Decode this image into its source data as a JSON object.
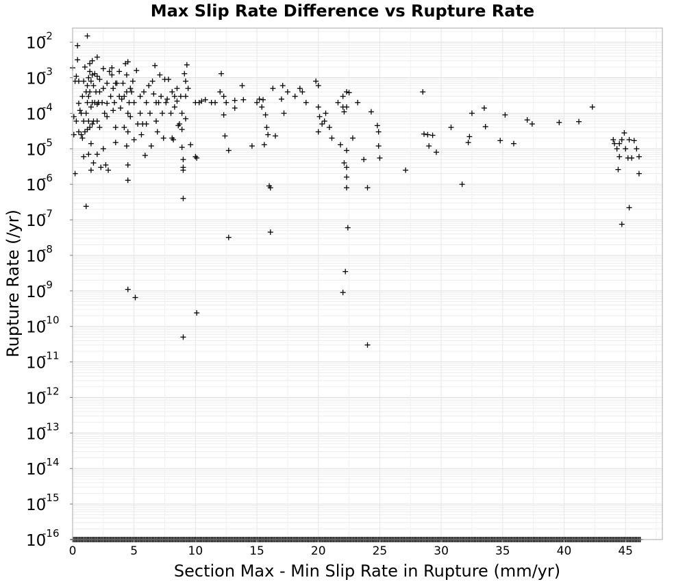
{
  "chart_data": {
    "type": "scatter",
    "title": "Max Slip Rate Difference vs Rupture Rate",
    "xlabel": "Section Max - Min Slip Rate in Rupture (mm/yr)",
    "ylabel": "Rupture Rate (/yr)",
    "xlim": [
      0,
      48
    ],
    "ylim": [
      1e-16,
      0.025
    ],
    "yscale": "log",
    "grid": true,
    "marker": "+",
    "x_ticks": [
      "0",
      "5",
      "10",
      "15",
      "20",
      "25",
      "30",
      "35",
      "40",
      "45"
    ],
    "y_ticks": [
      {
        "base": "10",
        "exp": "-2"
      },
      {
        "base": "10",
        "exp": "-3"
      },
      {
        "base": "10",
        "exp": "-4"
      },
      {
        "base": "10",
        "exp": "-5"
      },
      {
        "base": "10",
        "exp": "-6"
      },
      {
        "base": "10",
        "exp": "-7"
      },
      {
        "base": "10",
        "exp": "-8"
      },
      {
        "base": "10",
        "exp": "-9"
      },
      {
        "base": "10",
        "exp": "-10"
      },
      {
        "base": "10",
        "exp": "-11"
      },
      {
        "base": "10",
        "exp": "-12"
      },
      {
        "base": "10",
        "exp": "-13"
      },
      {
        "base": "10",
        "exp": "-14"
      },
      {
        "base": "10",
        "exp": "-15"
      },
      {
        "base": "10",
        "exp": "-16"
      }
    ],
    "floor_value": 1e-16,
    "floor_range": [
      0,
      46.2
    ],
    "series": [
      {
        "points": [
          [
            0.0,
            0.0019
          ],
          [
            0.1,
            8e-05
          ],
          [
            0.1,
            2.5e-05
          ],
          [
            0.2,
            0.0008
          ],
          [
            0.2,
            2e-06
          ],
          [
            0.3,
            0.0011
          ],
          [
            0.3,
            6e-05
          ],
          [
            0.4,
            0.008
          ],
          [
            0.4,
            0.0032
          ],
          [
            0.5,
            0.0008
          ],
          [
            0.5,
            0.00019
          ],
          [
            0.5,
            3e-05
          ],
          [
            0.6,
            0.00012
          ],
          [
            0.7,
            0.0001
          ],
          [
            0.7,
            2.5e-05
          ],
          [
            0.8,
            0.0003
          ],
          [
            0.8,
            2e-05
          ],
          [
            0.9,
            0.0008
          ],
          [
            0.9,
            6e-05
          ],
          [
            0.9,
            6e-06
          ],
          [
            1.0,
            0.002
          ],
          [
            1.0,
            3e-05
          ],
          [
            1.1,
            0.0004
          ],
          [
            1.1,
            0.0001
          ],
          [
            1.1,
            2.4e-07
          ],
          [
            1.2,
            0.015
          ],
          [
            1.2,
            0.0006
          ],
          [
            1.2,
            0.0002
          ],
          [
            1.2,
            3.5e-05
          ],
          [
            1.3,
            0.001
          ],
          [
            1.3,
            0.0003
          ],
          [
            1.3,
            6e-05
          ],
          [
            1.3,
            7e-06
          ],
          [
            1.4,
            0.0025
          ],
          [
            1.4,
            0.0015
          ],
          [
            1.4,
            0.0004
          ],
          [
            1.4,
            4e-05
          ],
          [
            1.5,
            0.0008
          ],
          [
            1.5,
            0.00015
          ],
          [
            1.5,
            2.5e-06
          ],
          [
            1.5,
            1.4e-05
          ],
          [
            1.6,
            0.003
          ],
          [
            1.6,
            0.0012
          ],
          [
            1.6,
            0.0002
          ],
          [
            1.6,
            5e-05
          ],
          [
            1.7,
            0.0006
          ],
          [
            1.7,
            6e-05
          ],
          [
            1.7,
            4e-06
          ],
          [
            1.8,
            0.0013
          ],
          [
            1.8,
            0.0002
          ],
          [
            1.9,
            0.0004
          ],
          [
            2.0,
            0.0038
          ],
          [
            2.0,
            0.0011
          ],
          [
            2.0,
            0.00018
          ],
          [
            2.0,
            6e-05
          ],
          [
            2.0,
            7e-06
          ],
          [
            2.1,
            0.0002
          ],
          [
            2.2,
            0.0009
          ],
          [
            2.2,
            0.0004
          ],
          [
            2.2,
            4e-05
          ],
          [
            2.3,
            3e-06
          ],
          [
            2.4,
            0.0002
          ],
          [
            2.5,
            0.0018
          ],
          [
            2.5,
            0.0005
          ],
          [
            2.5,
            1e-05
          ],
          [
            2.6,
            0.0001
          ],
          [
            2.7,
            3.5e-06
          ],
          [
            2.8,
            0.0007
          ],
          [
            2.8,
            0.00019
          ],
          [
            2.8,
            8e-05
          ],
          [
            2.9,
            2.5e-06
          ],
          [
            3.0,
            0.0015
          ],
          [
            3.1,
            0.0003
          ],
          [
            3.2,
            0.0019
          ],
          [
            3.2,
            0.0012
          ],
          [
            3.3,
            0.0005
          ],
          [
            3.3,
            0.00012
          ],
          [
            3.4,
            0.0002
          ],
          [
            3.5,
            0.0007
          ],
          [
            3.5,
            4e-05
          ],
          [
            3.5,
            1.5e-05
          ],
          [
            3.6,
            0.0007
          ],
          [
            3.8,
            0.0003
          ],
          [
            3.8,
            0.0015
          ],
          [
            3.9,
            0.00014
          ],
          [
            4.0,
            0.00025
          ],
          [
            4.1,
            0.0007
          ],
          [
            4.2,
            0.0003
          ],
          [
            4.2,
            4e-05
          ],
          [
            4.3,
            0.0025
          ],
          [
            4.4,
            0.0012
          ],
          [
            4.4,
            0.0004
          ],
          [
            4.4,
            1.2e-05
          ],
          [
            4.5,
            0.0028
          ],
          [
            4.5,
            0.0001
          ],
          [
            4.5,
            3e-05
          ],
          [
            4.5,
            3.5e-06
          ],
          [
            4.5,
            1.3e-06
          ],
          [
            4.5,
            1.1e-09
          ],
          [
            4.6,
            0.0002
          ],
          [
            4.7,
            0.0005
          ],
          [
            4.7,
            8e-05
          ],
          [
            4.8,
            0.0004
          ],
          [
            4.9,
            0.0008
          ],
          [
            5.0,
            0.0002
          ],
          [
            5.0,
            1.8e-05
          ],
          [
            5.1,
            6.5e-10
          ],
          [
            5.2,
            0.0016
          ],
          [
            5.3,
            5e-05
          ],
          [
            5.5,
            0.0003
          ],
          [
            5.5,
            0.0001
          ],
          [
            5.6,
            2.5e-05
          ],
          [
            5.7,
            5e-05
          ],
          [
            5.8,
            0.0004
          ],
          [
            5.9,
            6.5e-06
          ],
          [
            6.0,
            0.0002
          ],
          [
            6.0,
            5e-05
          ],
          [
            6.2,
            0.0006
          ],
          [
            6.3,
            0.0001
          ],
          [
            6.4,
            1.2e-05
          ],
          [
            6.5,
            0.0008
          ],
          [
            6.6,
            0.00035
          ],
          [
            6.7,
            0.0022
          ],
          [
            6.8,
            0.0002
          ],
          [
            6.8,
            6e-05
          ],
          [
            6.9,
            3e-05
          ],
          [
            7.0,
            0.0002
          ],
          [
            7.1,
            0.0012
          ],
          [
            7.2,
            0.0003
          ],
          [
            7.3,
            0.0001
          ],
          [
            7.4,
            2e-05
          ],
          [
            7.5,
            0.0009
          ],
          [
            7.6,
            0.0002
          ],
          [
            7.7,
            0.00025
          ],
          [
            7.8,
            0.0009
          ],
          [
            8.0,
            0.0001
          ],
          [
            8.1,
            0.0004
          ],
          [
            8.1,
            2e-05
          ],
          [
            8.2,
            1.8e-05
          ],
          [
            8.3,
            0.0003
          ],
          [
            8.3,
            0.00015
          ],
          [
            8.5,
            0.0005
          ],
          [
            8.5,
            0.00022
          ],
          [
            8.6,
            4.5e-05
          ],
          [
            8.7,
            5e-05
          ],
          [
            8.8,
            0.0003
          ],
          [
            8.9,
            0.0001
          ],
          [
            8.9,
            3.5e-05
          ],
          [
            8.9,
            1.1e-05
          ],
          [
            9.0,
            5e-06
          ],
          [
            9.0,
            3e-06
          ],
          [
            9.0,
            2.5e-06
          ],
          [
            9.0,
            4e-07
          ],
          [
            9.0,
            5e-11
          ],
          [
            9.1,
            0.0013
          ],
          [
            9.2,
            0.0008
          ],
          [
            9.2,
            0.0003
          ],
          [
            9.2,
            7e-05
          ],
          [
            9.3,
            0.0023
          ],
          [
            9.4,
            0.0005
          ],
          [
            9.6,
            1.3e-05
          ],
          [
            10.0,
            0.0002
          ],
          [
            10.0,
            6e-06
          ],
          [
            10.1,
            5.5e-06
          ],
          [
            10.1,
            2.4e-10
          ],
          [
            10.3,
            0.0002
          ],
          [
            10.5,
            0.00022
          ],
          [
            10.8,
            0.00024
          ],
          [
            11.3,
            0.0002
          ],
          [
            11.6,
            0.0002
          ],
          [
            12.0,
            0.0004
          ],
          [
            12.1,
            0.0013
          ],
          [
            12.3,
            0.0003
          ],
          [
            12.3,
            9e-05
          ],
          [
            12.4,
            2.3e-05
          ],
          [
            12.5,
            0.0002
          ],
          [
            12.7,
            9e-06
          ],
          [
            12.7,
            3.2e-08
          ],
          [
            13.2,
            0.00023
          ],
          [
            13.2,
            0.00014
          ],
          [
            13.8,
            0.0006
          ],
          [
            13.9,
            0.00024
          ],
          [
            14.6,
            1.2e-05
          ],
          [
            15.0,
            0.0002
          ],
          [
            15.2,
            0.00025
          ],
          [
            15.4,
            0.00015
          ],
          [
            15.5,
            0.00024
          ],
          [
            15.6,
            1.3e-05
          ],
          [
            15.7,
            9e-05
          ],
          [
            15.8,
            4e-05
          ],
          [
            15.9,
            2.5e-05
          ],
          [
            16.0,
            9e-07
          ],
          [
            16.1,
            8e-07
          ],
          [
            16.1,
            4.5e-08
          ],
          [
            16.3,
            0.0005
          ],
          [
            16.5,
            2.3e-05
          ],
          [
            17.0,
            0.00025
          ],
          [
            17.1,
            0.0006
          ],
          [
            17.2,
            0.0001
          ],
          [
            17.5,
            0.0004
          ],
          [
            18.1,
            0.0003
          ],
          [
            18.5,
            0.0005
          ],
          [
            18.7,
            0.0004
          ],
          [
            19.0,
            0.0002
          ],
          [
            19.8,
            0.0008
          ],
          [
            20.0,
            0.0006
          ],
          [
            20.0,
            0.00015
          ],
          [
            20.0,
            3e-05
          ],
          [
            20.1,
            8e-05
          ],
          [
            20.3,
            5e-05
          ],
          [
            20.5,
            6e-05
          ],
          [
            20.6,
            0.0001
          ],
          [
            20.9,
            4e-05
          ],
          [
            21.1,
            2e-05
          ],
          [
            21.6,
            0.0002
          ],
          [
            21.8,
            1.3e-05
          ],
          [
            22.0,
            0.0003
          ],
          [
            22.0,
            0.00015
          ],
          [
            22.0,
            9e-10
          ],
          [
            22.1,
            0.00011
          ],
          [
            22.1,
            4e-06
          ],
          [
            22.2,
            3.5e-09
          ],
          [
            22.3,
            0.0004
          ],
          [
            22.3,
            0.00015
          ],
          [
            22.3,
            9e-06
          ],
          [
            22.3,
            3e-06
          ],
          [
            22.3,
            1.6e-06
          ],
          [
            22.3,
            8e-07
          ],
          [
            22.4,
            6e-08
          ],
          [
            22.5,
            0.00038
          ],
          [
            22.8,
            2e-05
          ],
          [
            23.2,
            0.0002
          ],
          [
            23.7,
            5e-06
          ],
          [
            24.0,
            8e-07
          ],
          [
            24.0,
            3e-11
          ],
          [
            24.3,
            0.00011
          ],
          [
            24.8,
            4.5e-05
          ],
          [
            24.9,
            3e-05
          ],
          [
            24.9,
            1.2e-05
          ],
          [
            25.0,
            5.5e-06
          ],
          [
            27.1,
            2.5e-06
          ],
          [
            28.5,
            0.0004
          ],
          [
            28.6,
            2.6e-05
          ],
          [
            28.9,
            2.5e-05
          ],
          [
            29.0,
            1.2e-05
          ],
          [
            29.3,
            2.4e-05
          ],
          [
            29.6,
            8e-06
          ],
          [
            30.8,
            4e-05
          ],
          [
            31.7,
            1e-06
          ],
          [
            32.2,
            1.5e-05
          ],
          [
            32.3,
            2.2e-05
          ],
          [
            32.5,
            0.0001
          ],
          [
            33.5,
            0.00014
          ],
          [
            33.6,
            4.2e-05
          ],
          [
            34.8,
            1.7e-05
          ],
          [
            35.2,
            9e-05
          ],
          [
            35.9,
            1.4e-05
          ],
          [
            37.0,
            6.5e-05
          ],
          [
            37.4,
            5e-05
          ],
          [
            39.6,
            5.5e-05
          ],
          [
            41.2,
            5.8e-05
          ],
          [
            42.3,
            0.00015
          ],
          [
            44.0,
            1.8e-05
          ],
          [
            44.1,
            1.4e-05
          ],
          [
            44.3,
            1e-05
          ],
          [
            44.4,
            2.6e-06
          ],
          [
            44.5,
            6e-06
          ],
          [
            44.5,
            1.4e-05
          ],
          [
            44.7,
            1.8e-05
          ],
          [
            44.7,
            7.5e-08
          ],
          [
            44.9,
            2.8e-05
          ],
          [
            45.0,
            1e-05
          ],
          [
            45.2,
            5.5e-06
          ],
          [
            45.3,
            1.8e-05
          ],
          [
            45.3,
            2.2e-07
          ],
          [
            45.5,
            5.5e-06
          ],
          [
            45.7,
            1.7e-05
          ],
          [
            45.9,
            1e-05
          ],
          [
            46.1,
            6e-06
          ],
          [
            46.1,
            2e-06
          ]
        ]
      }
    ]
  }
}
